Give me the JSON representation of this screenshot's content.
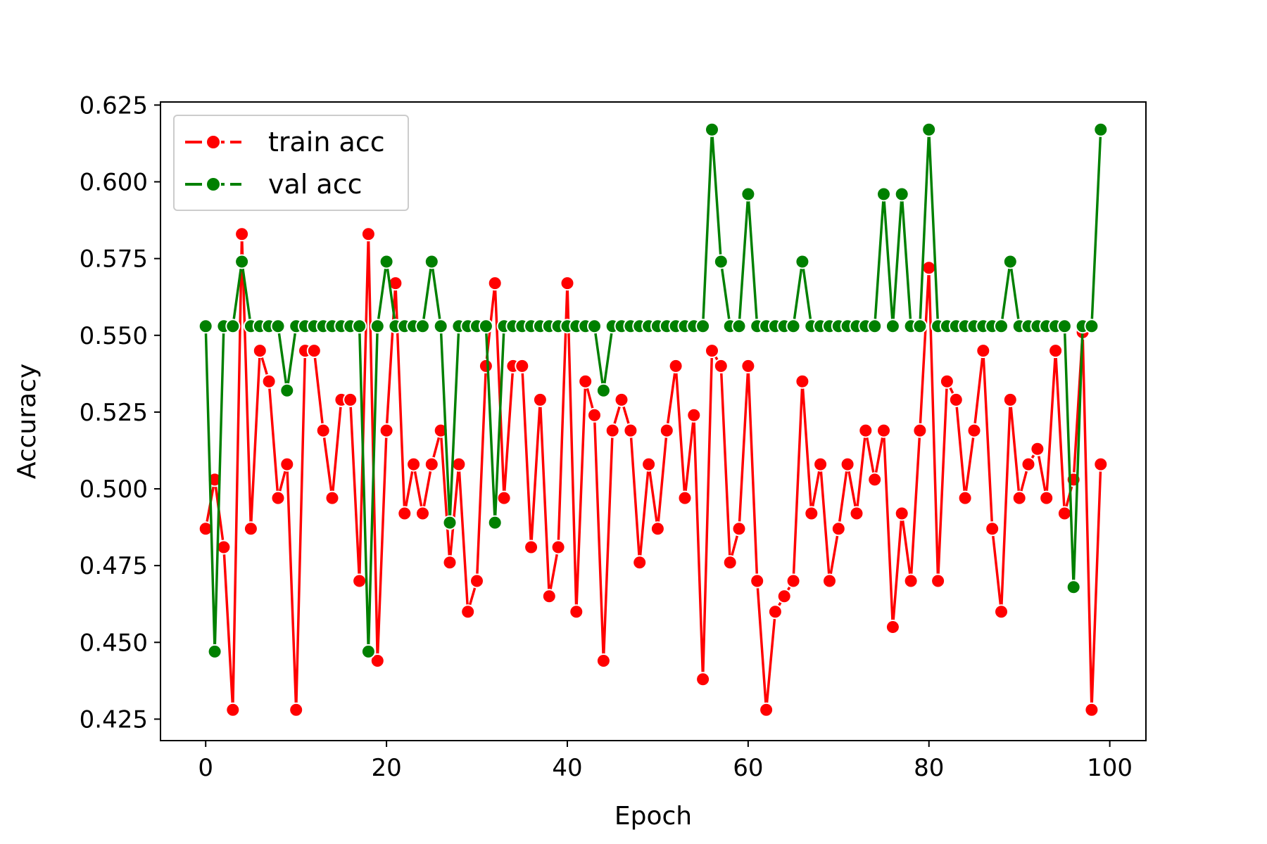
{
  "chart_data": {
    "type": "line",
    "xlabel": "Epoch",
    "ylabel": "Accuracy",
    "xlim": [
      -5,
      104
    ],
    "ylim": [
      0.418,
      0.626
    ],
    "xticks": [
      0,
      20,
      40,
      60,
      80,
      100
    ],
    "yticks": [
      0.425,
      0.45,
      0.475,
      0.5,
      0.525,
      0.55,
      0.575,
      0.6,
      0.625
    ],
    "ytick_labels": [
      "0.425",
      "0.450",
      "0.475",
      "0.500",
      "0.525",
      "0.550",
      "0.575",
      "0.600",
      "0.625"
    ],
    "grid": false,
    "legend_position": "upper-left",
    "series": [
      {
        "name": "train acc",
        "color": "#ff0000",
        "x": [
          0,
          1,
          2,
          3,
          4,
          5,
          6,
          7,
          8,
          9,
          10,
          11,
          12,
          13,
          14,
          15,
          16,
          17,
          18,
          19,
          20,
          21,
          22,
          23,
          24,
          25,
          26,
          27,
          28,
          29,
          30,
          31,
          32,
          33,
          34,
          35,
          36,
          37,
          38,
          39,
          40,
          41,
          42,
          43,
          44,
          45,
          46,
          47,
          48,
          49,
          50,
          51,
          52,
          53,
          54,
          55,
          56,
          57,
          58,
          59,
          60,
          61,
          62,
          63,
          64,
          65,
          66,
          67,
          68,
          69,
          70,
          71,
          72,
          73,
          74,
          75,
          76,
          77,
          78,
          79,
          80,
          81,
          82,
          83,
          84,
          85,
          86,
          87,
          88,
          89,
          90,
          91,
          92,
          93,
          94,
          95,
          96,
          97,
          98,
          99
        ],
        "values": [
          0.487,
          0.503,
          0.481,
          0.428,
          0.583,
          0.487,
          0.545,
          0.535,
          0.497,
          0.508,
          0.428,
          0.545,
          0.545,
          0.519,
          0.497,
          0.529,
          0.529,
          0.47,
          0.583,
          0.444,
          0.519,
          0.567,
          0.492,
          0.508,
          0.492,
          0.508,
          0.519,
          0.476,
          0.508,
          0.46,
          0.47,
          0.54,
          0.567,
          0.497,
          0.54,
          0.54,
          0.481,
          0.529,
          0.465,
          0.481,
          0.567,
          0.46,
          0.535,
          0.524,
          0.444,
          0.519,
          0.529,
          0.519,
          0.476,
          0.508,
          0.487,
          0.519,
          0.54,
          0.497,
          0.524,
          0.438,
          0.545,
          0.54,
          0.476,
          0.487,
          0.54,
          0.47,
          0.428,
          0.46,
          0.465,
          0.47,
          0.535,
          0.492,
          0.508,
          0.47,
          0.487,
          0.508,
          0.492,
          0.519,
          0.503,
          0.519,
          0.455,
          0.492,
          0.47,
          0.519,
          0.572,
          0.47,
          0.535,
          0.529,
          0.497,
          0.519,
          0.545,
          0.487,
          0.46,
          0.529,
          0.497,
          0.508,
          0.513,
          0.497,
          0.545,
          0.492,
          0.503,
          0.551,
          0.428,
          0.508
        ]
      },
      {
        "name": "val acc",
        "color": "#008000",
        "x": [
          0,
          1,
          2,
          3,
          4,
          5,
          6,
          7,
          8,
          9,
          10,
          11,
          12,
          13,
          14,
          15,
          16,
          17,
          18,
          19,
          20,
          21,
          22,
          23,
          24,
          25,
          26,
          27,
          28,
          29,
          30,
          31,
          32,
          33,
          34,
          35,
          36,
          37,
          38,
          39,
          40,
          41,
          42,
          43,
          44,
          45,
          46,
          47,
          48,
          49,
          50,
          51,
          52,
          53,
          54,
          55,
          56,
          57,
          58,
          59,
          60,
          61,
          62,
          63,
          64,
          65,
          66,
          67,
          68,
          69,
          70,
          71,
          72,
          73,
          74,
          75,
          76,
          77,
          78,
          79,
          80,
          81,
          82,
          83,
          84,
          85,
          86,
          87,
          88,
          89,
          90,
          91,
          92,
          93,
          94,
          95,
          96,
          97,
          98,
          99
        ],
        "values": [
          0.553,
          0.447,
          0.553,
          0.553,
          0.574,
          0.553,
          0.553,
          0.553,
          0.553,
          0.532,
          0.553,
          0.553,
          0.553,
          0.553,
          0.553,
          0.553,
          0.553,
          0.553,
          0.447,
          0.553,
          0.574,
          0.553,
          0.553,
          0.553,
          0.553,
          0.574,
          0.553,
          0.489,
          0.553,
          0.553,
          0.553,
          0.553,
          0.489,
          0.553,
          0.553,
          0.553,
          0.553,
          0.553,
          0.553,
          0.553,
          0.553,
          0.553,
          0.553,
          0.553,
          0.532,
          0.553,
          0.553,
          0.553,
          0.553,
          0.553,
          0.553,
          0.553,
          0.553,
          0.553,
          0.553,
          0.553,
          0.617,
          0.574,
          0.553,
          0.553,
          0.596,
          0.553,
          0.553,
          0.553,
          0.553,
          0.553,
          0.574,
          0.553,
          0.553,
          0.553,
          0.553,
          0.553,
          0.553,
          0.553,
          0.553,
          0.596,
          0.553,
          0.596,
          0.553,
          0.553,
          0.617,
          0.553,
          0.553,
          0.553,
          0.553,
          0.553,
          0.553,
          0.553,
          0.553,
          0.574,
          0.553,
          0.553,
          0.553,
          0.553,
          0.553,
          0.553,
          0.468,
          0.553,
          0.553,
          0.617
        ]
      }
    ]
  }
}
